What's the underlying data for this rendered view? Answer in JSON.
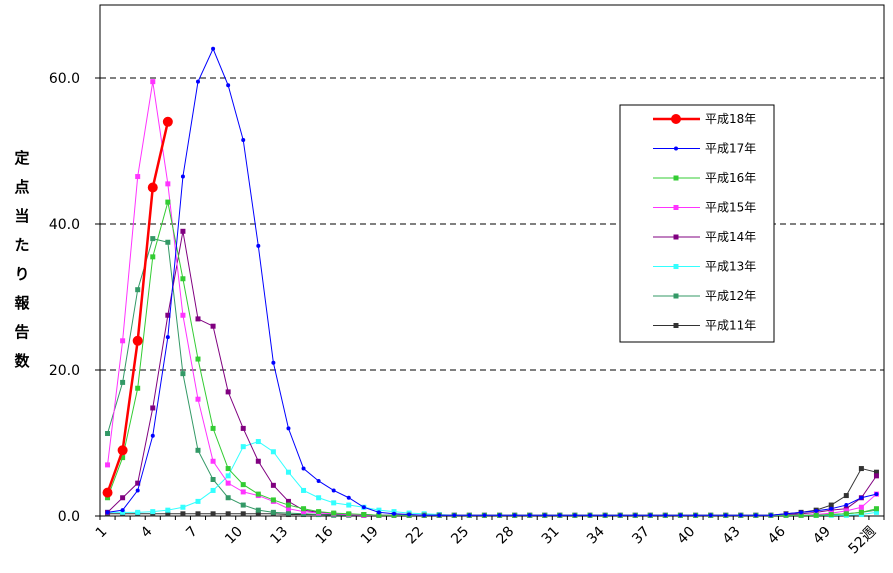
{
  "chart_data": {
    "type": "line",
    "ylabel": "定点当たり報告数",
    "ylim": [
      0,
      70
    ],
    "y_ticks": [
      "0.0",
      "20.0",
      "40.0",
      "60.0"
    ],
    "grid": "horizontal dashed at 20, 40, 60",
    "x_categories": [
      "1",
      "2",
      "3",
      "4",
      "5",
      "6",
      "7",
      "8",
      "9",
      "10",
      "11",
      "12",
      "13",
      "14",
      "15",
      "16",
      "17",
      "18",
      "19",
      "20",
      "21",
      "22",
      "23",
      "24",
      "25",
      "26",
      "27",
      "28",
      "29",
      "30",
      "31",
      "32",
      "33",
      "34",
      "35",
      "36",
      "37",
      "38",
      "39",
      "40",
      "41",
      "42",
      "43",
      "44",
      "45",
      "46",
      "47",
      "48",
      "49",
      "50",
      "51",
      "52"
    ],
    "x_tick_labels": [
      "1",
      "4",
      "7",
      "10",
      "13",
      "16",
      "19",
      "22",
      "25",
      "28",
      "31",
      "34",
      "37",
      "40",
      "43",
      "46",
      "49",
      "52週"
    ],
    "legend_position": "right",
    "series": [
      {
        "name": "平成18年",
        "color": "#ff0000",
        "marker": "circle",
        "values": [
          3.2,
          9.0,
          24.0,
          45.0,
          54.0
        ]
      },
      {
        "name": "平成17年",
        "color": "#0000ff",
        "marker": "dot",
        "values": [
          0.5,
          0.8,
          3.5,
          11.0,
          24.5,
          46.5,
          59.5,
          64.0,
          59.0,
          51.5,
          37.0,
          21.0,
          12.0,
          6.5,
          4.8,
          3.5,
          2.5,
          1.2,
          0.5,
          0.3,
          0.2,
          0.1,
          0.1,
          0.1,
          0.1,
          0.1,
          0.1,
          0.1,
          0.1,
          0.1,
          0.1,
          0.1,
          0.1,
          0.1,
          0.1,
          0.1,
          0.1,
          0.1,
          0.1,
          0.1,
          0.1,
          0.1,
          0.1,
          0.1,
          0.1,
          0.3,
          0.5,
          0.7,
          1.0,
          1.5,
          2.5,
          3.0
        ]
      },
      {
        "name": "平成16年",
        "color": "#33cc33",
        "marker": "square",
        "values": [
          2.5,
          8.0,
          17.5,
          35.5,
          43.0,
          32.5,
          21.5,
          12.0,
          6.5,
          4.3,
          3.0,
          2.2,
          1.5,
          1.0,
          0.6,
          0.4,
          0.3,
          0.2,
          0.1,
          0.1,
          0.1,
          0.1,
          0.1,
          0.1,
          0.1,
          0.1,
          0.1,
          0.1,
          0.1,
          0.1,
          0.1,
          0.1,
          0.1,
          0.1,
          0.1,
          0.1,
          0.1,
          0.1,
          0.1,
          0.1,
          0.1,
          0.1,
          0.1,
          0.1,
          0.1,
          0.1,
          0.1,
          0.1,
          0.2,
          0.3,
          0.5,
          1.0
        ]
      },
      {
        "name": "平成15年",
        "color": "#ff33ff",
        "marker": "square",
        "values": [
          7.0,
          24.0,
          46.5,
          59.5,
          45.5,
          27.5,
          16.0,
          7.5,
          4.5,
          3.3,
          2.8,
          2.0,
          1.0,
          0.6,
          0.4,
          0.3,
          0.2,
          0.1,
          0.1,
          0.1,
          0.1,
          0.1,
          0.1,
          0.1,
          0.1,
          0.1,
          0.1,
          0.1,
          0.1,
          0.1,
          0.1,
          0.1,
          0.1,
          0.1,
          0.1,
          0.1,
          0.1,
          0.1,
          0.1,
          0.1,
          0.1,
          0.1,
          0.1,
          0.1,
          0.1,
          0.1,
          0.1,
          0.2,
          0.4,
          0.7,
          1.2,
          3.0
        ]
      },
      {
        "name": "平成14年",
        "color": "#800080",
        "marker": "square",
        "values": [
          0.5,
          2.5,
          4.5,
          14.8,
          27.5,
          39.0,
          27.0,
          26.0,
          17.0,
          12.0,
          7.5,
          4.2,
          2.0,
          0.8,
          0.5,
          0.3,
          0.2,
          0.1,
          0.1,
          0.1,
          0.1,
          0.1,
          0.1,
          0.1,
          0.1,
          0.1,
          0.1,
          0.1,
          0.1,
          0.1,
          0.1,
          0.1,
          0.1,
          0.1,
          0.1,
          0.1,
          0.1,
          0.1,
          0.1,
          0.1,
          0.1,
          0.1,
          0.1,
          0.1,
          0.1,
          0.2,
          0.3,
          0.5,
          0.8,
          1.0,
          2.5,
          5.5
        ]
      },
      {
        "name": "平成13年",
        "color": "#33ffff",
        "marker": "square",
        "values": [
          0.5,
          0.5,
          0.5,
          0.6,
          0.8,
          1.2,
          2.0,
          3.5,
          5.5,
          9.5,
          10.2,
          8.8,
          6.0,
          3.5,
          2.5,
          1.8,
          1.5,
          1.2,
          0.8,
          0.6,
          0.4,
          0.3,
          0.2,
          0.1,
          0.1,
          0.1,
          0.1,
          0.1,
          0.1,
          0.1,
          0.1,
          0.1,
          0.1,
          0.1,
          0.1,
          0.1,
          0.1,
          0.1,
          0.1,
          0.1,
          0.1,
          0.1,
          0.1,
          0.1,
          0.1,
          0.1,
          0.1,
          0.1,
          0.1,
          0.1,
          0.2,
          0.5
        ]
      },
      {
        "name": "平成12年",
        "color": "#339966",
        "marker": "square",
        "values": [
          11.3,
          18.3,
          31.0,
          38.0,
          37.5,
          19.5,
          9.0,
          5.0,
          2.5,
          1.5,
          0.8,
          0.5,
          0.4,
          0.3,
          0.2,
          0.1,
          0.1,
          0.1,
          0.1,
          0.1,
          0.1,
          0.1,
          0.1,
          0.1,
          0.1,
          0.1,
          0.1,
          0.1,
          0.1,
          0.1,
          0.1,
          0.1,
          0.1,
          0.1,
          0.1,
          0.1,
          0.1,
          0.1,
          0.1,
          0.1,
          0.1,
          0.1,
          0.1,
          0.1,
          0.1,
          0.1,
          0.1,
          0.1,
          0.2,
          0.3,
          0.5,
          0.8
        ]
      },
      {
        "name": "平成11年",
        "color": "#333333",
        "marker": "square",
        "values": [
          0.3,
          0.3,
          0.3,
          0.3,
          0.3,
          0.3,
          0.3,
          0.3,
          0.3,
          0.3,
          0.3,
          0.3,
          0.2,
          0.2,
          0.2,
          0.2,
          0.2,
          0.2,
          0.1,
          0.1,
          0.1,
          0.1,
          0.1,
          0.1,
          0.1,
          0.1,
          0.1,
          0.1,
          0.1,
          0.1,
          0.1,
          0.1,
          0.1,
          0.1,
          0.1,
          0.1,
          0.1,
          0.1,
          0.1,
          0.1,
          0.1,
          0.1,
          0.1,
          0.1,
          0.1,
          0.3,
          0.5,
          0.8,
          1.5,
          2.8,
          6.5,
          6.0
        ]
      }
    ]
  }
}
